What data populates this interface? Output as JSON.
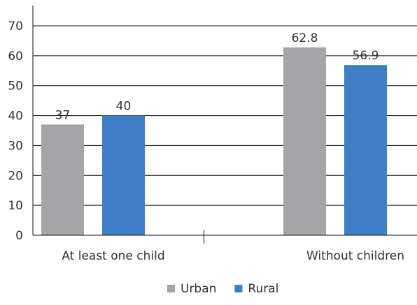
{
  "chart_data": {
    "type": "bar",
    "categories": [
      "At least one child",
      "Without children"
    ],
    "series": [
      {
        "name": "Urban",
        "values": [
          37,
          62.8
        ],
        "labels": [
          "37",
          "62.8"
        ],
        "color": "#a5a5a7"
      },
      {
        "name": "Rural",
        "values": [
          40,
          56.9
        ],
        "labels": [
          "40",
          "56.9"
        ],
        "color": "#3f7fc6"
      }
    ],
    "title": "",
    "xlabel": "",
    "ylabel": "",
    "ylim": [
      0,
      70
    ],
    "yticks": [
      "0",
      "10",
      "20",
      "30",
      "40",
      "50",
      "60",
      "70"
    ],
    "grid": true,
    "legend_position": "bottom-center"
  }
}
